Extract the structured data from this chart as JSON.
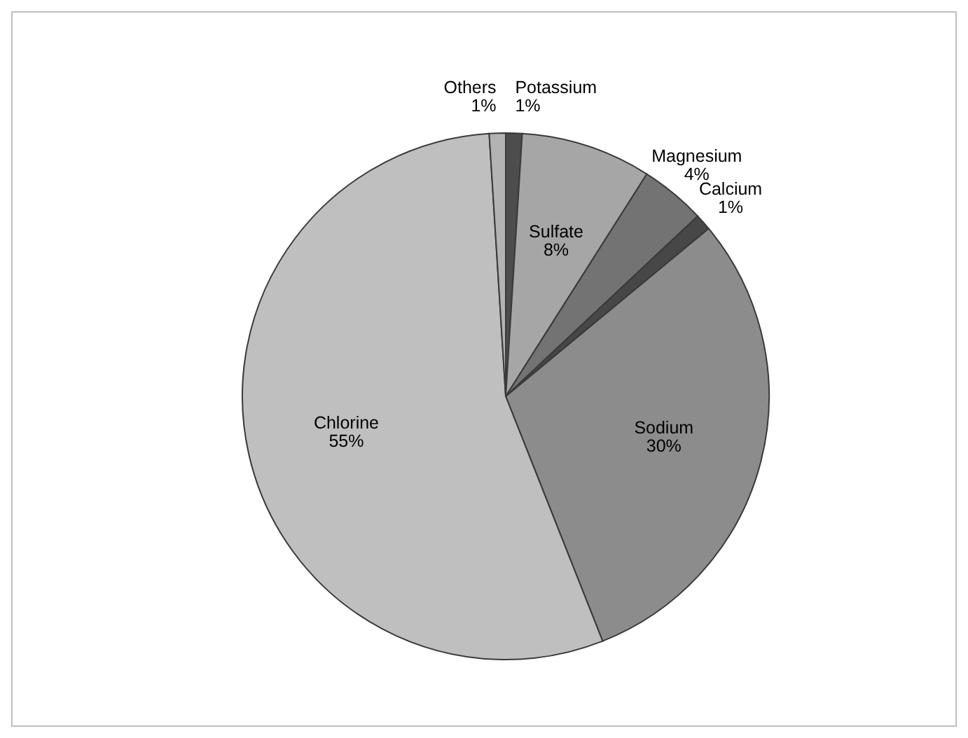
{
  "chart_data": {
    "type": "pie",
    "categories": [
      "Sodium",
      "Chlorine",
      "Others",
      "Potassium",
      "Sulfate",
      "Magnesium",
      "Calcium"
    ],
    "values": [
      30,
      55,
      1,
      1,
      8,
      4,
      1
    ],
    "colors": [
      "#8c8c8c",
      "#bfbfbf",
      "#b3b3b3",
      "#4d4d4d",
      "#a6a6a6",
      "#737373",
      "#474747"
    ],
    "value_labels": [
      "30%",
      "55%",
      "1%",
      "1%",
      "8%",
      "4%",
      "1%"
    ],
    "legend": false
  }
}
